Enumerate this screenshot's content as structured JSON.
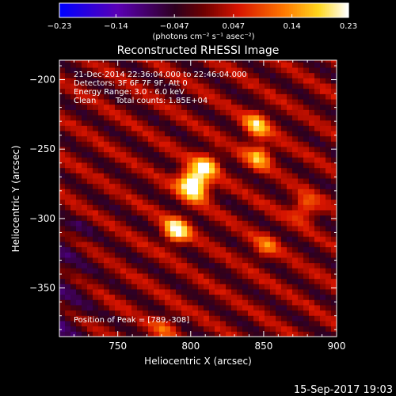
{
  "chart_data": {
    "type": "heatmap",
    "title": "Reconstructed RHESSI Image",
    "xlabel": "Heliocentric X (arcsec)",
    "ylabel": "Heliocentric Y (arcsec)",
    "xlim": [
      710,
      900
    ],
    "ylim": [
      -385,
      -186
    ],
    "xticks": [
      750,
      800,
      850,
      900
    ],
    "yticks": [
      -200,
      -250,
      -300,
      -350
    ],
    "xtick_labels": [
      "750",
      "800",
      "850",
      "900"
    ],
    "ytick_labels": [
      "−200",
      "−250",
      "−300",
      "−350"
    ],
    "colorbar": {
      "range": [
        -0.23,
        0.23
      ],
      "ticks": [
        -0.23,
        -0.14,
        -0.047,
        0.047,
        0.14,
        0.23
      ],
      "tick_labels": [
        "−0.23",
        "−0.14",
        "−0.047",
        "0.047",
        "0.14",
        "0.23"
      ],
      "unit_label": "(photons cm⁻² s⁻¹ asec⁻²)",
      "colormap": "blue-purple-red-yellow-white"
    },
    "annotations": [
      "21-Dec-2014 22:36:04.000 to 22:46:04.000",
      "Detectors: 3F 6F 7F 9F, Att 0",
      "Energy Range: 3.0 - 6.0 keV",
      "Clean",
      "Total counts: 1.85E+04"
    ],
    "peak_label": "Position of Peak = [789,-308]",
    "sources": [
      {
        "x": 790,
        "y": -308,
        "intensity": 0.23
      },
      {
        "x": 799,
        "y": -273,
        "intensity": 0.21
      },
      {
        "x": 810,
        "y": -262,
        "intensity": 0.19
      },
      {
        "x": 805,
        "y": -279,
        "intensity": 0.17
      },
      {
        "x": 845,
        "y": -233,
        "intensity": 0.18
      },
      {
        "x": 847,
        "y": -255,
        "intensity": 0.16
      },
      {
        "x": 878,
        "y": -292,
        "intensity": 0.13
      },
      {
        "x": 851,
        "y": -320,
        "intensity": 0.1
      },
      {
        "x": 782,
        "y": -378,
        "intensity": 0.08
      }
    ]
  },
  "footer": {
    "timestamp": "15-Sep-2017 19:03"
  },
  "colors": {
    "background": "#000000",
    "axes": "#ffffff"
  }
}
